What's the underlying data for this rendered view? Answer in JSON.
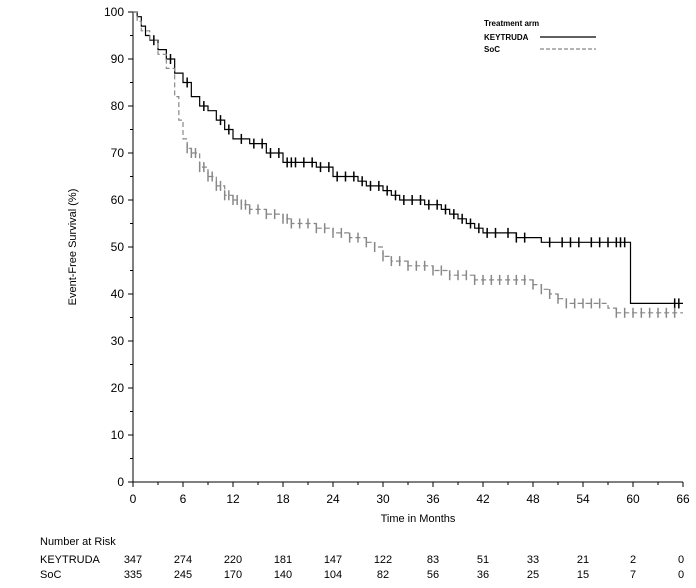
{
  "chart_data": {
    "type": "line",
    "subtype": "kaplan-meier",
    "title": "",
    "xlabel": "Time in Months",
    "ylabel": "Event-Free Survival (%)",
    "xlim": [
      0,
      66
    ],
    "ylim": [
      0,
      100
    ],
    "x_ticks": [
      0,
      6,
      12,
      18,
      24,
      30,
      36,
      42,
      48,
      54,
      60,
      66
    ],
    "y_ticks": [
      0,
      10,
      20,
      30,
      40,
      50,
      60,
      70,
      80,
      90,
      100
    ],
    "legend": {
      "title": "Treatment arm",
      "placement": "top-right",
      "entries": [
        {
          "name": "KEYTRUDA",
          "color": "#000000",
          "style": "solid"
        },
        {
          "name": "SoC",
          "color": "#888888",
          "style": "dashed"
        }
      ]
    },
    "series": [
      {
        "name": "KEYTRUDA",
        "color": "#000000",
        "style": "solid",
        "points": [
          [
            0,
            100
          ],
          [
            0.5,
            99
          ],
          [
            1,
            97
          ],
          [
            1.5,
            95
          ],
          [
            2,
            94
          ],
          [
            3,
            92
          ],
          [
            4,
            90
          ],
          [
            5,
            87
          ],
          [
            6,
            85
          ],
          [
            7,
            82
          ],
          [
            8,
            80
          ],
          [
            9,
            79
          ],
          [
            10,
            77
          ],
          [
            11,
            75
          ],
          [
            12,
            73
          ],
          [
            14,
            72
          ],
          [
            16,
            70
          ],
          [
            17,
            70
          ],
          [
            18,
            68
          ],
          [
            20,
            68
          ],
          [
            22,
            67
          ],
          [
            24,
            65
          ],
          [
            26,
            65
          ],
          [
            27,
            64
          ],
          [
            28,
            63
          ],
          [
            30,
            62
          ],
          [
            31,
            61
          ],
          [
            32,
            60
          ],
          [
            34,
            60
          ],
          [
            35,
            59
          ],
          [
            36,
            59
          ],
          [
            37,
            58
          ],
          [
            38,
            57
          ],
          [
            39,
            56
          ],
          [
            40,
            55
          ],
          [
            41,
            54
          ],
          [
            42,
            53
          ],
          [
            44,
            53
          ],
          [
            46,
            52
          ],
          [
            48,
            52
          ],
          [
            49,
            51
          ],
          [
            52,
            51
          ],
          [
            59.7,
            51
          ],
          [
            59.7,
            38
          ],
          [
            66,
            38
          ]
        ],
        "censor_x": [
          2.5,
          4.5,
          6.5,
          8.5,
          10.5,
          11.5,
          13,
          14.5,
          15.5,
          16.5,
          17.5,
          18.5,
          19,
          19.5,
          20.5,
          21.5,
          22.5,
          23.5,
          24.5,
          25.5,
          26.5,
          27.5,
          28.5,
          29.5,
          30.5,
          31.5,
          32.5,
          33.5,
          34.5,
          35.5,
          36.5,
          37.5,
          38.5,
          39.5,
          40.5,
          41.5,
          42.5,
          43.5,
          45,
          46,
          47,
          50,
          51.5,
          52.5,
          53.5,
          55,
          56,
          57,
          58,
          58.5,
          59,
          65,
          65.5
        ]
      },
      {
        "name": "SoC",
        "color": "#888888",
        "style": "dashed",
        "points": [
          [
            0,
            100
          ],
          [
            0.5,
            98
          ],
          [
            1,
            96
          ],
          [
            2,
            94
          ],
          [
            3,
            91
          ],
          [
            4,
            88
          ],
          [
            5,
            82
          ],
          [
            5.5,
            77
          ],
          [
            6,
            73
          ],
          [
            6.5,
            71
          ],
          [
            7,
            70
          ],
          [
            8,
            67
          ],
          [
            9,
            65
          ],
          [
            10,
            63
          ],
          [
            11,
            61
          ],
          [
            12,
            60
          ],
          [
            13,
            59
          ],
          [
            14,
            58
          ],
          [
            16,
            57
          ],
          [
            18,
            56
          ],
          [
            19,
            55
          ],
          [
            20,
            55
          ],
          [
            22,
            54
          ],
          [
            24,
            53
          ],
          [
            26,
            52
          ],
          [
            28,
            51
          ],
          [
            29,
            50
          ],
          [
            30,
            48
          ],
          [
            31,
            47
          ],
          [
            32,
            47
          ],
          [
            33,
            46
          ],
          [
            34,
            46
          ],
          [
            36,
            45
          ],
          [
            38,
            44
          ],
          [
            40,
            44
          ],
          [
            41,
            43
          ],
          [
            42,
            43
          ],
          [
            44,
            43
          ],
          [
            47,
            43
          ],
          [
            48,
            42
          ],
          [
            49,
            41
          ],
          [
            50,
            40
          ],
          [
            51,
            39
          ],
          [
            52,
            38
          ],
          [
            54,
            38
          ],
          [
            56,
            38
          ],
          [
            57,
            37
          ],
          [
            58,
            36
          ],
          [
            60,
            36
          ],
          [
            66,
            36
          ]
        ],
        "censor_x": [
          6.5,
          7,
          7.5,
          8,
          8.5,
          9,
          9.5,
          10,
          10.5,
          11,
          11.5,
          12,
          12.5,
          13,
          13.5,
          14,
          15,
          16,
          17,
          18,
          18.5,
          19,
          20,
          21,
          22,
          23,
          24,
          25,
          26,
          27,
          28,
          29,
          30,
          31,
          32,
          33,
          34,
          35,
          36,
          37,
          38,
          39,
          40,
          41,
          42,
          43,
          44,
          45,
          46,
          47,
          48,
          49,
          50,
          51,
          52,
          53,
          54,
          55,
          56,
          58,
          59,
          60,
          61,
          62,
          63,
          64,
          65
        ]
      }
    ],
    "risk_table": {
      "title": "Number at Risk",
      "time_points": [
        0,
        6,
        12,
        18,
        24,
        30,
        36,
        42,
        48,
        54,
        60,
        66
      ],
      "rows": [
        {
          "label": "KEYTRUDA",
          "values": [
            "347",
            "274",
            "220",
            "181",
            "147",
            "122",
            "83",
            "51",
            "33",
            "21",
            "2",
            "0"
          ]
        },
        {
          "label": "SoC",
          "values": [
            "335",
            "245",
            "170",
            "140",
            "104",
            "82",
            "56",
            "36",
            "25",
            "15",
            "7",
            "0"
          ]
        }
      ]
    }
  }
}
